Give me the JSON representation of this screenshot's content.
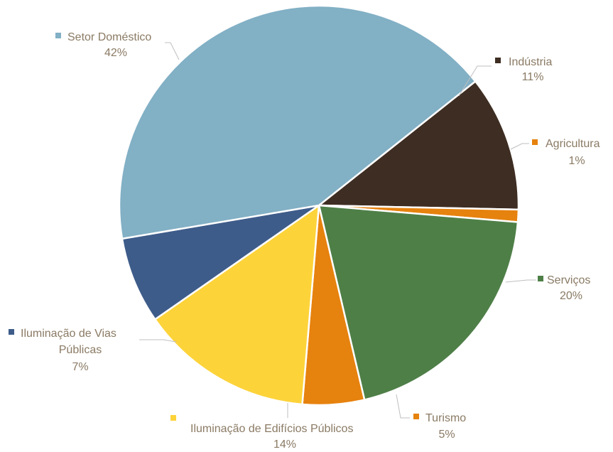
{
  "chart_data": {
    "type": "pie",
    "title": "",
    "slices": [
      {
        "name": "Indústria",
        "value": 11,
        "label": "11%",
        "color": "#3e2d22"
      },
      {
        "name": "Agricultura",
        "value": 1,
        "label": "1%",
        "color": "#e6820e"
      },
      {
        "name": "Serviços",
        "value": 20,
        "label": "20%",
        "color": "#4e7f47"
      },
      {
        "name": "Turismo",
        "value": 5,
        "label": "5%",
        "color": "#e6820e"
      },
      {
        "name": "Iluminação de Edifícios Públicos",
        "value": 14,
        "label": "14%",
        "color": "#fdd33a"
      },
      {
        "name": "Iluminação de Vias Públicas",
        "value": 7,
        "label": "7%",
        "color": "#3e5c8a"
      },
      {
        "name": "Setor Doméstico",
        "value": 42,
        "label": "42%",
        "color": "#82b0c5"
      }
    ],
    "label_color": "#8a7a64",
    "leader_line_color": "#bfbfbf"
  }
}
